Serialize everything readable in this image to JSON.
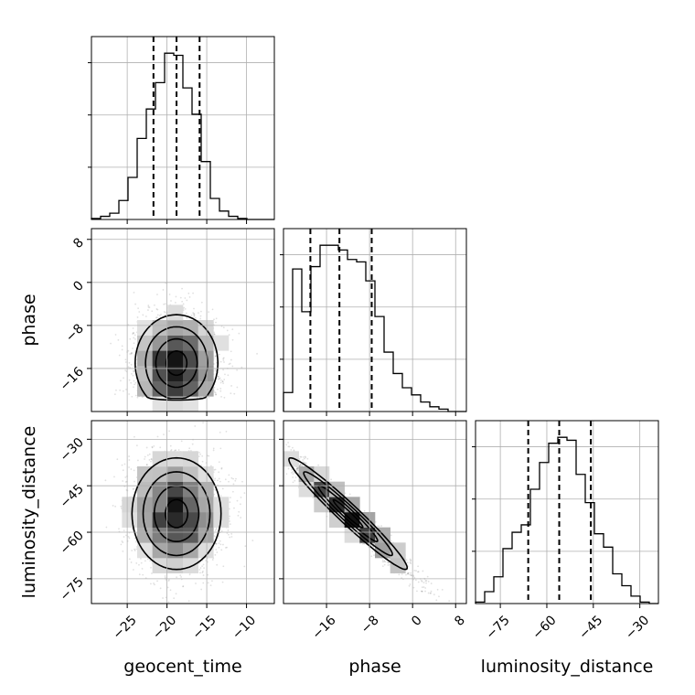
{
  "chart_data": {
    "type": "corner",
    "parameters": [
      {
        "name": "geocent_time",
        "range": [
          -29.5,
          -6.5
        ],
        "ticks": [
          -25,
          -20,
          -15,
          -10
        ],
        "quantiles": [
          -21.7,
          -18.8,
          -15.9
        ]
      },
      {
        "name": "phase",
        "range": [
          -24,
          10
        ],
        "ticks": [
          -16,
          -8,
          0,
          8
        ],
        "quantiles": [
          -19.0,
          -13.6,
          -7.6
        ]
      },
      {
        "name": "luminosity_distance",
        "range": [
          -83,
          -24
        ],
        "ticks": [
          -75,
          -60,
          -45,
          -30
        ],
        "quantiles": [
          -66.0,
          -56.0,
          -45.8
        ]
      }
    ],
    "tick_labels": {
      "geocent_time": [
        "−25",
        "−20",
        "−15",
        "−10"
      ],
      "phase": [
        "−16",
        "−8",
        "0",
        "8"
      ],
      "luminosity_distance": [
        "−75",
        "−60",
        "−45",
        "−30"
      ]
    },
    "histograms": [
      {
        "parameter": "geocent_time",
        "edges": [
          -29.5,
          -28.35,
          -27.2,
          -26.05,
          -24.9,
          -23.75,
          -22.6,
          -21.45,
          -20.3,
          -19.15,
          -18.0,
          -16.85,
          -15.7,
          -14.55,
          -13.4,
          -12.25,
          -11.1,
          -9.95,
          -8.8,
          -7.65,
          -6.5
        ],
        "counts": [
          1,
          3,
          6,
          18,
          40,
          77,
          105,
          130,
          158,
          156,
          125,
          100,
          55,
          20,
          8,
          3,
          1,
          0,
          0,
          0
        ]
      },
      {
        "parameter": "phase",
        "edges": [
          -24,
          -22.3,
          -20.6,
          -18.9,
          -17.2,
          -15.5,
          -13.8,
          -12.1,
          -10.4,
          -8.7,
          -7.0,
          -5.3,
          -3.6,
          -1.9,
          -0.2,
          1.5,
          3.2,
          4.9,
          6.6,
          8.3,
          10
        ],
        "counts": [
          8,
          60,
          42,
          61,
          70,
          70,
          68,
          64,
          63,
          55,
          40,
          25,
          16,
          10,
          7,
          4,
          2,
          1,
          0,
          0
        ]
      },
      {
        "parameter": "luminosity_distance",
        "edges": [
          -83,
          -80.05,
          -77.1,
          -74.15,
          -71.2,
          -68.25,
          -65.3,
          -62.35,
          -59.4,
          -56.45,
          -53.5,
          -50.55,
          -47.6,
          -44.65,
          -41.7,
          -38.75,
          -35.8,
          -32.85,
          -29.9,
          -26.95,
          -24
        ],
        "counts": [
          1,
          8,
          18,
          37,
          48,
          53,
          77,
          95,
          108,
          112,
          110,
          87,
          68,
          47,
          38,
          20,
          12,
          5,
          1,
          0
        ]
      }
    ],
    "joint": [
      {
        "x": "geocent_time",
        "y": "phase",
        "x_mean": -18.8,
        "x_sd": 2.6,
        "y_mean": -15.0,
        "y_sd": 4.5,
        "corr": 0.0,
        "y_floor": -21.5
      },
      {
        "x": "geocent_time",
        "y": "luminosity_distance",
        "x_mean": -18.8,
        "x_sd": 2.8,
        "y_mean": -54.0,
        "y_sd": 9.0,
        "corr": 0.0
      },
      {
        "x": "phase",
        "y": "luminosity_distance",
        "x_mean": -12.0,
        "x_sd": 5.5,
        "y_mean": -54.0,
        "y_sd": 9.0,
        "corr": -0.97
      }
    ],
    "quantile_line_style": "dashed",
    "grid": true,
    "legend": "none"
  }
}
